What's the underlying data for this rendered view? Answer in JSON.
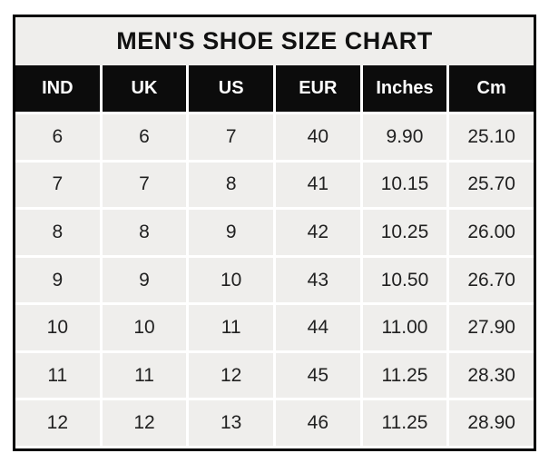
{
  "colors": {
    "outer_border": "#000000",
    "title_bg": "#efeeec",
    "title_text": "#111111",
    "header_bg": "#0c0c0c",
    "header_text": "#ffffff",
    "cell_bg": "#efeeec",
    "cell_text": "#212121",
    "gridline": "#ffffff",
    "page_bg": "#ffffff"
  },
  "chart_data": {
    "type": "table",
    "title": "MEN'S SHOE SIZE CHART",
    "columns": [
      "IND",
      "UK",
      "US",
      "EUR",
      "Inches",
      "Cm"
    ],
    "rows": [
      [
        "6",
        "6",
        "7",
        "40",
        "9.90",
        "25.10"
      ],
      [
        "7",
        "7",
        "8",
        "41",
        "10.15",
        "25.70"
      ],
      [
        "8",
        "8",
        "9",
        "42",
        "10.25",
        "26.00"
      ],
      [
        "9",
        "9",
        "10",
        "43",
        "10.50",
        "26.70"
      ],
      [
        "10",
        "10",
        "11",
        "44",
        "11.00",
        "27.90"
      ],
      [
        "11",
        "11",
        "12",
        "45",
        "11.25",
        "28.30"
      ],
      [
        "12",
        "12",
        "13",
        "46",
        "11.25",
        "28.90"
      ]
    ]
  }
}
